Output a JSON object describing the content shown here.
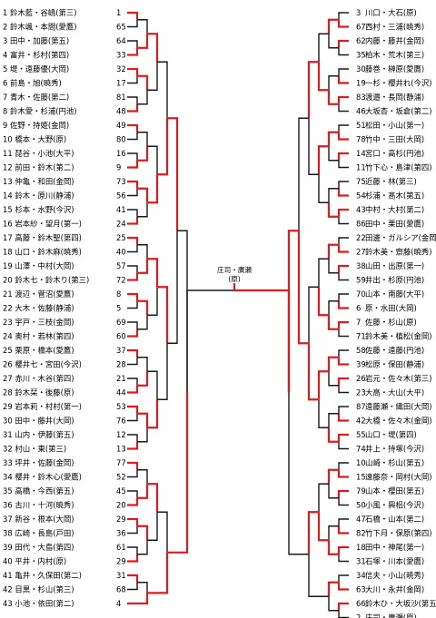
{
  "left_entries": [
    {
      "no": "1",
      "names": "鈴木藍・谷嶋",
      "school": "第三",
      "seed": "1"
    },
    {
      "no": "2",
      "names": "鈴木颯・本間",
      "school": "愛鷹",
      "seed": "65"
    },
    {
      "no": "3",
      "names": "田中・加藤",
      "school": "第五",
      "seed": "64"
    },
    {
      "no": "4",
      "names": "富井・杉村",
      "school": "第四",
      "seed": "33"
    },
    {
      "no": "5",
      "names": "堤・遠藤優",
      "school": "大岡",
      "seed": "32"
    },
    {
      "no": "6",
      "names": "前島・旭",
      "school": "暁秀",
      "seed": "17"
    },
    {
      "no": "7",
      "names": "青木・佐藤",
      "school": "第二",
      "seed": "81"
    },
    {
      "no": "8",
      "names": "鈴木愛・杉浦",
      "school": "円池",
      "seed": "48"
    },
    {
      "no": "9",
      "names": "佐野・持姫",
      "school": "金岡",
      "seed": "49"
    },
    {
      "no": "10",
      "names": "橋本・大野",
      "school": "原",
      "seed": "80"
    },
    {
      "no": "11",
      "names": "琵谷・小池",
      "school": "大平",
      "seed": "16"
    },
    {
      "no": "12",
      "names": "前田・鈴木",
      "school": "第二",
      "seed": "9"
    },
    {
      "no": "13",
      "names": "仲亀・和田",
      "school": "金岡",
      "seed": "73"
    },
    {
      "no": "14",
      "names": "鈴木・原川",
      "school": "静浦",
      "seed": "56"
    },
    {
      "no": "15",
      "names": "杉本・水野",
      "school": "今沢",
      "seed": "41"
    },
    {
      "no": "16",
      "names": "岩本紗・望月",
      "school": "第一",
      "seed": "24"
    },
    {
      "no": "17",
      "names": "高藤・鈴木聖",
      "school": "第四",
      "seed": "25"
    },
    {
      "no": "18",
      "names": "山口・鈴木麻",
      "school": "暁秀",
      "seed": "40"
    },
    {
      "no": "19",
      "names": "山澤・中村",
      "school": "大岡",
      "seed": "57"
    },
    {
      "no": "20",
      "names": "鈴木七・鈴木り",
      "school": "第三",
      "seed": "72"
    },
    {
      "no": "21",
      "names": "渡辺・菅沼",
      "school": "愛鷹",
      "seed": "8"
    },
    {
      "no": "22",
      "names": "大木・佐藤",
      "school": "静浦",
      "seed": "5"
    },
    {
      "no": "23",
      "names": "宇戸・三枝",
      "school": "金岡",
      "seed": "69"
    },
    {
      "no": "24",
      "names": "奥村・若林",
      "school": "第四",
      "seed": "60"
    },
    {
      "no": "25",
      "names": "栗原・橋本",
      "school": "愛鷹",
      "seed": "37"
    },
    {
      "no": "26",
      "names": "櫻井七・宮田",
      "school": "今沢",
      "seed": "28"
    },
    {
      "no": "27",
      "names": "赤川・木谷",
      "school": "第四",
      "seed": "21"
    },
    {
      "no": "28",
      "names": "鈴木栞・後藤",
      "school": "原",
      "seed": "44"
    },
    {
      "no": "29",
      "names": "岩本莉・村村",
      "school": "第一",
      "seed": "53"
    },
    {
      "no": "30",
      "names": "田中・藤井",
      "school": "大岡",
      "seed": "76"
    },
    {
      "no": "31",
      "names": "山内・伊藤",
      "school": "第五",
      "seed": "12"
    },
    {
      "no": "32",
      "names": "村山・東",
      "school": "第三",
      "seed": "13"
    },
    {
      "no": "33",
      "names": "坪井・佐藤",
      "school": "金岡",
      "seed": "77"
    },
    {
      "no": "34",
      "names": "櫻井・鈴木心",
      "school": "愛鷹",
      "seed": "52"
    },
    {
      "no": "35",
      "names": "高橋・今西",
      "school": "第五",
      "seed": "45"
    },
    {
      "no": "36",
      "names": "古川・十河",
      "school": "暁秀",
      "seed": "20"
    },
    {
      "no": "37",
      "names": "新谷・根本",
      "school": "大岡",
      "seed": "29"
    },
    {
      "no": "38",
      "names": "広崎・長島",
      "school": "戸田",
      "seed": "36"
    },
    {
      "no": "39",
      "names": "田代・大島",
      "school": "第四",
      "seed": "61"
    },
    {
      "no": "40",
      "names": "平井・内村",
      "school": "原",
      "seed": "29"
    },
    {
      "no": "41",
      "names": "亀井・久保田",
      "school": "第二",
      "seed": "31"
    },
    {
      "no": "42",
      "names": "目黒・杉山",
      "school": "第三",
      "seed": "68"
    },
    {
      "no": "43",
      "names": "小池・依田",
      "school": "第二",
      "seed": "4"
    }
  ],
  "right_entries": [
    {
      "no": "3",
      "names": "川口・大石",
      "school": "原"
    },
    {
      "no": "67",
      "names": "西村・三浦",
      "school": "暁秀"
    },
    {
      "no": "62",
      "names": "内藤・藤井",
      "school": "金岡"
    },
    {
      "no": "35",
      "names": "柏木・荒木",
      "school": "第三"
    },
    {
      "no": "30",
      "names": "藤巻・榊原",
      "school": "愛鷹"
    },
    {
      "no": "19",
      "names": "一杉・櫻井れ",
      "school": "今沢"
    },
    {
      "no": "83",
      "names": "渡邉・長岡",
      "school": "静浦"
    },
    {
      "no": "46",
      "names": "大坂杏・坂倉",
      "school": "第二"
    },
    {
      "no": "51",
      "names": "松田・小山",
      "school": "第一"
    },
    {
      "no": "78",
      "names": "竹中・三田",
      "school": "大岡"
    },
    {
      "no": "14",
      "names": "宮口・高杉",
      "school": "円池"
    },
    {
      "no": "11",
      "names": "竹下心・島津",
      "school": "第四"
    },
    {
      "no": "75",
      "names": "近藤・林",
      "school": "第三"
    },
    {
      "no": "54",
      "names": "杉浦・髙木",
      "school": "第五"
    },
    {
      "no": "43",
      "names": "中村・大村",
      "school": "第二"
    },
    {
      "no": "86",
      "names": "田中・栗田",
      "school": "愛鷹"
    },
    {
      "no": "22",
      "names": "田邊・ガルシア",
      "school": "金岡"
    },
    {
      "no": "27",
      "names": "鈴木美・齋藤",
      "school": "暁秀"
    },
    {
      "no": "38",
      "names": "山田・出原",
      "school": "第一"
    },
    {
      "no": "59",
      "names": "井出・杉原",
      "school": "円池"
    },
    {
      "no": "70",
      "names": "山本・南藤",
      "school": "大平"
    },
    {
      "no": "6",
      "names": "原・水田",
      "school": "大岡"
    },
    {
      "no": "7",
      "names": "佐藤・杉山",
      "school": "原"
    },
    {
      "no": "71",
      "names": "鈴木美・植松",
      "school": "金岡"
    },
    {
      "no": "58",
      "names": "佐藤・遠藤",
      "school": "円池"
    },
    {
      "no": "39",
      "names": "松原・保田",
      "school": "静浦"
    },
    {
      "no": "26",
      "names": "岩元・佐々木",
      "school": "第三"
    },
    {
      "no": "23",
      "names": "大高・大山",
      "school": "大平"
    },
    {
      "no": "87",
      "names": "遠藤瀬・織田",
      "school": "大岡"
    },
    {
      "no": "42",
      "names": "大橋・佐々木",
      "school": "金岡"
    },
    {
      "no": "55",
      "names": "山口・堤",
      "school": "第四"
    },
    {
      "no": "74",
      "names": "井上・持塚",
      "school": "今沢"
    },
    {
      "no": "10",
      "names": "山崎・杉山",
      "school": "第五"
    },
    {
      "no": "15",
      "names": "遠藤奈・岡村",
      "school": "大岡"
    },
    {
      "no": "79",
      "names": "山本・櫻田",
      "school": "第五"
    },
    {
      "no": "50",
      "names": "小風・興梠",
      "school": "今沢"
    },
    {
      "no": "47",
      "names": "石橋・山本",
      "school": "第二"
    },
    {
      "no": "82",
      "names": "竹下月・保原",
      "school": "第四"
    },
    {
      "no": "18",
      "names": "田中・神尾",
      "school": "第一"
    },
    {
      "no": "31",
      "names": "石塚・川本",
      "school": "愛鷹"
    },
    {
      "no": "34",
      "names": "信夫・小山",
      "school": "暁秀"
    },
    {
      "no": "63",
      "names": "大川・永井",
      "school": "金岡"
    },
    {
      "no": "66",
      "names": "鈴木ひ・大坂沙",
      "school": "第五"
    },
    {
      "no": "2",
      "names": "庄司・廣瀬",
      "school": "原"
    }
  ],
  "champion": {
    "names": "庄司・廣瀬",
    "school": "原"
  },
  "colors": {
    "winner": "#d81e1e",
    "line": "#1a1a1a"
  }
}
